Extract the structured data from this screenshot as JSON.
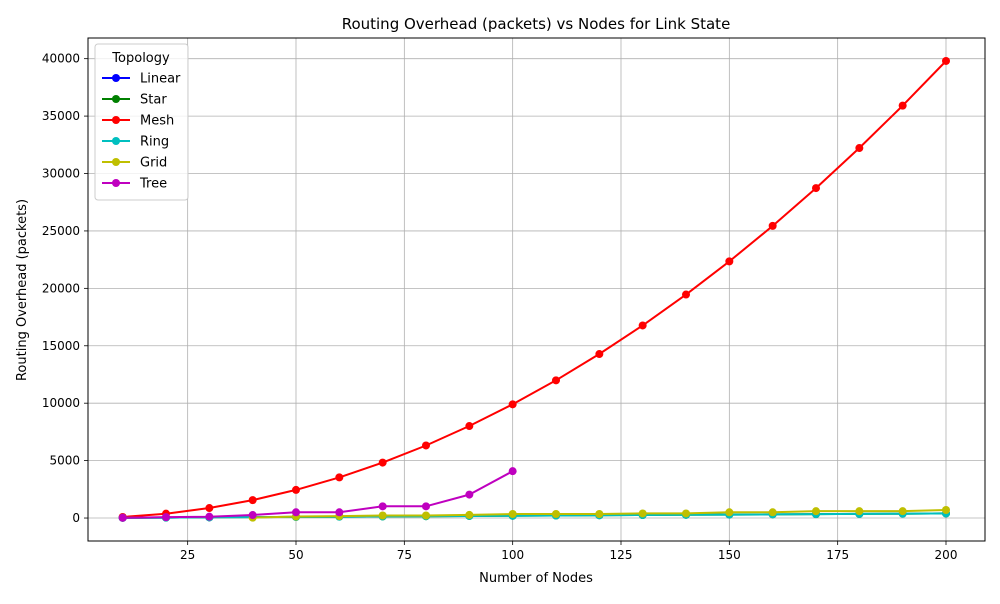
{
  "chart_data": {
    "type": "line",
    "title": "Routing Overhead (packets) vs Nodes for Link State",
    "xlabel": "Number of Nodes",
    "ylabel": "Routing Overhead (packets)",
    "xlim": [
      2,
      209
    ],
    "ylim": [
      -2000,
      41800
    ],
    "x_ticks": [
      25,
      50,
      75,
      100,
      125,
      150,
      175,
      200
    ],
    "y_ticks": [
      0,
      5000,
      10000,
      15000,
      20000,
      25000,
      30000,
      35000,
      40000
    ],
    "grid": true,
    "legend": {
      "title": "Topology",
      "placement": "top-left"
    },
    "series": [
      {
        "name": "Linear",
        "color": "#0000ff",
        "x": [
          10,
          20,
          30
        ],
        "y": [
          20,
          40,
          60
        ]
      },
      {
        "name": "Star",
        "color": "#008000",
        "x": [
          10,
          20,
          30,
          40,
          50,
          60,
          70,
          80,
          90,
          100,
          110,
          120,
          130,
          140,
          150,
          160,
          170,
          180,
          190,
          200
        ],
        "y": [
          20,
          40,
          60,
          80,
          100,
          120,
          140,
          160,
          180,
          200,
          220,
          240,
          260,
          280,
          300,
          320,
          340,
          360,
          380,
          400
        ]
      },
      {
        "name": "Mesh",
        "color": "#ff0000",
        "x": [
          10,
          20,
          30,
          40,
          50,
          60,
          70,
          80,
          90,
          100,
          110,
          120,
          130,
          140,
          150,
          160,
          170,
          180,
          190,
          200
        ],
        "y": [
          90,
          380,
          870,
          1560,
          2450,
          3540,
          4830,
          6320,
          8010,
          9900,
          11990,
          14280,
          16770,
          19460,
          22350,
          25440,
          28730,
          32220,
          35910,
          39800
        ]
      },
      {
        "name": "Ring",
        "color": "#00bfbf",
        "x": [
          10,
          20,
          30,
          40,
          50,
          60,
          70,
          80,
          90,
          100,
          110,
          120,
          130,
          140,
          150,
          160,
          170,
          180,
          190,
          200
        ],
        "y": [
          20,
          40,
          60,
          80,
          100,
          120,
          140,
          160,
          180,
          200,
          220,
          240,
          260,
          280,
          300,
          320,
          340,
          360,
          380,
          400
        ]
      },
      {
        "name": "Grid",
        "color": "#bfbf00",
        "x": [
          40,
          50,
          60,
          70,
          80,
          90,
          100,
          110,
          120,
          130,
          140,
          150,
          160,
          170,
          180,
          190,
          200
        ],
        "y": [
          30,
          130,
          170,
          220,
          220,
          270,
          350,
          350,
          350,
          400,
          400,
          500,
          500,
          600,
          600,
          600,
          700
        ]
      },
      {
        "name": "Tree",
        "color": "#bf00bf",
        "x": [
          10,
          20,
          30,
          40,
          50,
          60,
          70,
          80,
          90,
          100
        ],
        "y": [
          20,
          80,
          120,
          260,
          500,
          500,
          1020,
          1020,
          2040,
          4080
        ]
      }
    ]
  }
}
